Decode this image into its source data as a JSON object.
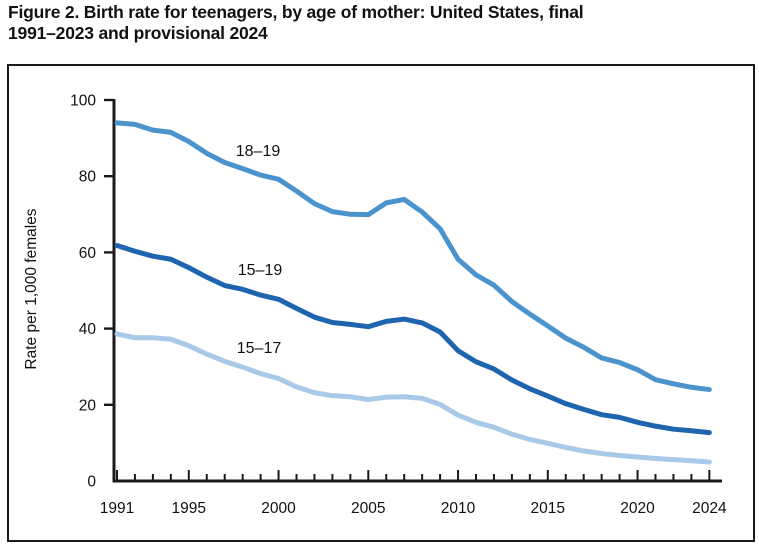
{
  "figure": {
    "title_line1": "Figure 2. Birth rate for teenagers, by age of mother: United States, final",
    "title_line2": "1991–2023 and provisional 2024"
  },
  "colors": {
    "axis": "#1a1a1a",
    "text": "#111111",
    "series_18_19": "#4b93cd",
    "series_15_19": "#1e64ae",
    "series_15_17": "#a9c9e8"
  },
  "chart_data": {
    "type": "line",
    "title": "Figure 2. Birth rate for teenagers, by age of mother: United States, final 1991–2023 and provisional 2024",
    "xlabel": "",
    "ylabel": "Rate per 1,000 females",
    "ylim": [
      0,
      100
    ],
    "yticks": [
      0,
      20,
      40,
      60,
      80,
      100
    ],
    "x": [
      1991,
      1992,
      1993,
      1994,
      1995,
      1996,
      1997,
      1998,
      1999,
      2000,
      2001,
      2002,
      2003,
      2004,
      2005,
      2006,
      2007,
      2008,
      2009,
      2010,
      2011,
      2012,
      2013,
      2014,
      2015,
      2016,
      2017,
      2018,
      2019,
      2020,
      2021,
      2022,
      2023,
      2024
    ],
    "xticks_labeled": [
      1991,
      1995,
      2000,
      2005,
      2010,
      2015,
      2020,
      2024
    ],
    "grid": false,
    "legend_position": "inline-labels",
    "series": [
      {
        "name": "18–19",
        "color": "#4b93cd",
        "values": [
          94.0,
          93.6,
          92.1,
          91.5,
          89.1,
          86.0,
          83.6,
          82.0,
          80.3,
          79.2,
          76.1,
          72.8,
          70.7,
          70.0,
          69.9,
          73.0,
          73.9,
          70.6,
          66.2,
          58.2,
          54.1,
          51.4,
          47.1,
          43.8,
          40.7,
          37.5,
          35.1,
          32.3,
          31.1,
          29.2,
          26.6,
          25.5,
          24.6,
          24.0
        ]
      },
      {
        "name": "15–19",
        "color": "#1e64ae",
        "values": [
          61.8,
          60.3,
          59.0,
          58.2,
          56.0,
          53.5,
          51.3,
          50.3,
          48.8,
          47.7,
          45.3,
          43.0,
          41.6,
          41.1,
          40.5,
          41.9,
          42.5,
          41.5,
          39.1,
          34.2,
          31.3,
          29.4,
          26.5,
          24.2,
          22.3,
          20.3,
          18.8,
          17.4,
          16.7,
          15.4,
          14.4,
          13.6,
          13.2,
          12.7
        ]
      },
      {
        "name": "15–17",
        "color": "#a9c9e8",
        "values": [
          38.6,
          37.6,
          37.6,
          37.2,
          35.5,
          33.3,
          31.4,
          29.9,
          28.2,
          26.9,
          24.7,
          23.2,
          22.4,
          22.1,
          21.4,
          22.0,
          22.1,
          21.7,
          20.1,
          17.3,
          15.4,
          14.1,
          12.3,
          10.9,
          9.9,
          8.8,
          7.9,
          7.2,
          6.7,
          6.3,
          5.9,
          5.6,
          5.3,
          5.0
        ]
      }
    ]
  }
}
